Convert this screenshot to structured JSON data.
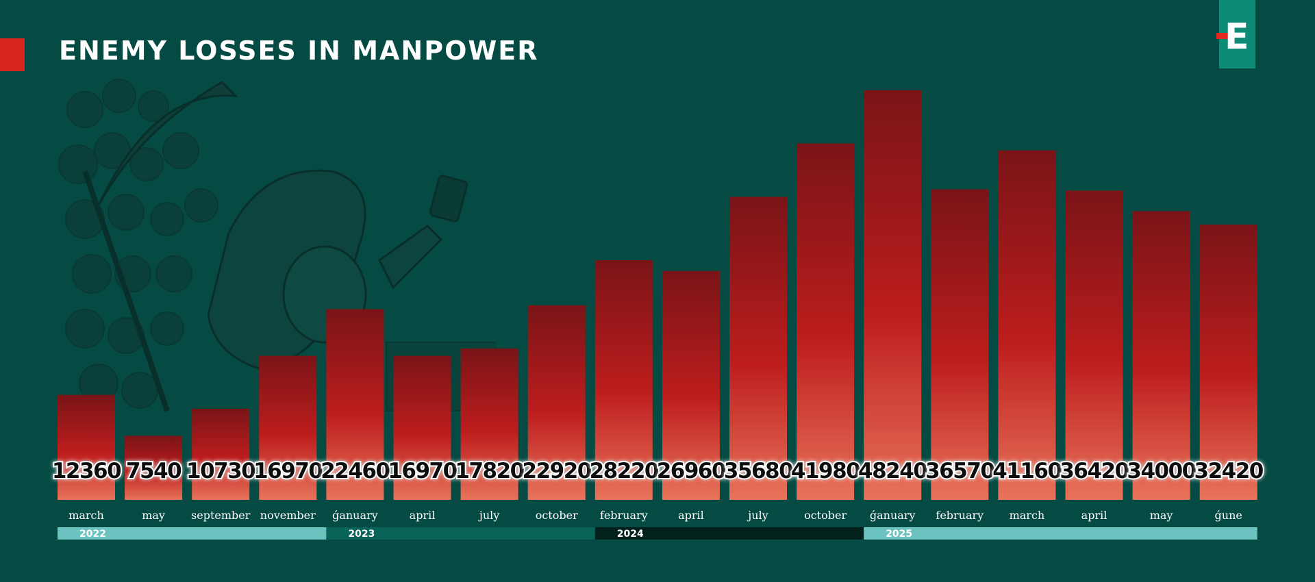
{
  "title": "ENEMY LOSSES IN MANPOWER",
  "brand": {
    "logo_letter": "E",
    "accent": "#d8241e",
    "logo_bg": "#0f8a76",
    "background": "#054b44"
  },
  "chart_data": {
    "type": "bar",
    "title": "ENEMY LOSSES IN MANPOWER",
    "categories": [
      "march",
      "may",
      "september",
      "november",
      "ǵanuary",
      "april",
      "july",
      "october",
      "february",
      "april",
      "july",
      "october",
      "ǵanuary",
      "february",
      "march",
      "april",
      "may",
      "ǵune"
    ],
    "values": [
      12360,
      7540,
      10730,
      16970,
      22460,
      16970,
      17820,
      22920,
      28220,
      26960,
      35680,
      41980,
      48240,
      36570,
      41160,
      36420,
      34000,
      32420
    ],
    "data_labels": [
      "12360",
      "7540",
      "10730",
      "16970",
      "22460",
      "16970",
      "17820",
      "22920",
      "28220",
      "26960",
      "35680",
      "41980",
      "48240",
      "36570",
      "41160",
      "36420",
      "34000",
      "32420"
    ],
    "year_groups": [
      {
        "label": "2022",
        "start": 0,
        "end": 3,
        "color": "#6cc2be"
      },
      {
        "label": "2023",
        "start": 4,
        "end": 7,
        "color": "#0a6358"
      },
      {
        "label": "2024",
        "start": 8,
        "end": 11,
        "color": "#03211c"
      },
      {
        "label": "2025",
        "start": 12,
        "end": 17,
        "color": "#6cc2be"
      }
    ],
    "ylim": [
      0,
      50000
    ],
    "grid": false,
    "bar_color_top": "#7a1417",
    "bar_color_mid": "#bd1d1d",
    "bar_color_bottom": "#e8735a"
  }
}
